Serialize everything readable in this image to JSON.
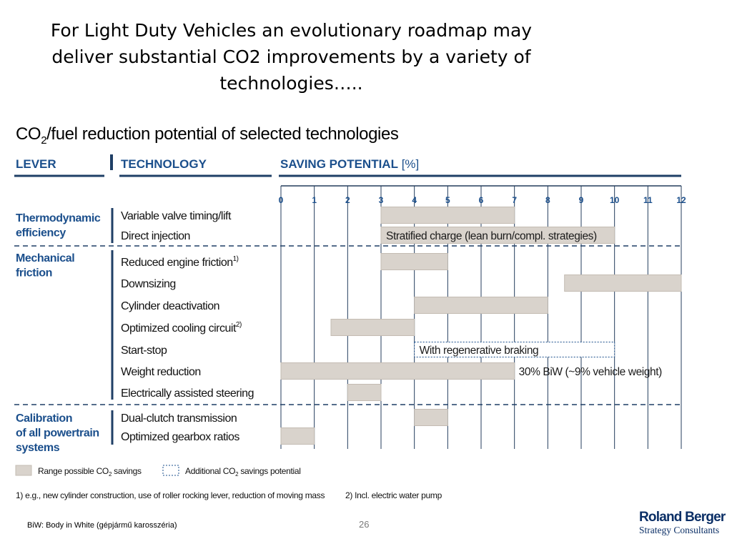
{
  "slide": {
    "title": "For Light Duty Vehicles an evolutionary roadmap may deliver substantial CO2 improvements by a variety of technologies…..",
    "page_number": "26",
    "footnote_biw": "BiW: Body in White (gépjármű karosszéria)"
  },
  "logo": {
    "line1": "Roland Berger",
    "line2": "Strategy Consultants"
  },
  "chart_data": {
    "type": "bar",
    "subtype": "floating-range",
    "title_parts": [
      "CO",
      "2",
      "/fuel reduction potential of selected technologies"
    ],
    "columns": {
      "lever": "LEVER",
      "technology": "TECHNOLOGY",
      "saving": "SAVING POTENTIAL",
      "saving_unit": "[%]"
    },
    "x_ticks": [
      "0",
      "1",
      "2",
      "3",
      "4",
      "5",
      "6",
      "7",
      "8",
      "9",
      "10",
      "11",
      "12"
    ],
    "xlim": [
      0,
      12
    ],
    "grid": true,
    "groups": [
      {
        "lever": "Thermodynamic efficiency",
        "lever_lines": [
          "Thermodynamic",
          "efficiency"
        ]
      },
      {
        "lever": "Mechanical friction",
        "lever_lines": [
          "Mechanical",
          "friction"
        ]
      },
      {
        "lever": "Calibration of all powertrain systems",
        "lever_lines": [
          "Calibration",
          "of all powertrain",
          "systems"
        ]
      }
    ],
    "rows": [
      {
        "group": 0,
        "technology": "Variable valve timing/lift",
        "sup": "",
        "range": [
          3,
          7
        ]
      },
      {
        "group": 0,
        "technology": "Direct injection",
        "sup": "",
        "range": [
          3,
          10
        ],
        "label": "Stratified charge (lean burn/compl. strategies)"
      },
      {
        "group": 1,
        "technology": "Reduced engine friction",
        "sup": "1)",
        "range": [
          3,
          5
        ]
      },
      {
        "group": 1,
        "technology": "Downsizing",
        "sup": "",
        "range": [
          8.5,
          12
        ]
      },
      {
        "group": 1,
        "technology": "Cylinder deactivation",
        "sup": "",
        "range": [
          4,
          8
        ]
      },
      {
        "group": 1,
        "technology": "Optimized cooling circuit",
        "sup": "2)",
        "range": [
          1.5,
          4
        ]
      },
      {
        "group": 1,
        "technology": "Start-stop",
        "sup": "",
        "range": null,
        "additional": [
          4,
          10
        ],
        "label": "With regenerative braking"
      },
      {
        "group": 1,
        "technology": "Weight reduction",
        "sup": "",
        "range": [
          0,
          7
        ],
        "label_after": "30% BiW (~9% vehicle weight)"
      },
      {
        "group": 1,
        "technology": "Electrically assisted steering",
        "sup": "",
        "range": [
          2,
          3
        ]
      },
      {
        "group": 2,
        "technology": "Dual-clutch transmission",
        "sup": "",
        "range": [
          4,
          5
        ]
      },
      {
        "group": 2,
        "technology": "Optimized gearbox ratios",
        "sup": "",
        "range": [
          0,
          1
        ]
      }
    ],
    "legend": {
      "range_text": "Range possible",
      "range_co": "CO",
      "range_sub": "2",
      "range_after": " savings",
      "additional_text": "Additional ",
      "additional_co": "CO",
      "additional_sub": "2",
      "additional_after": " savings potential"
    },
    "footnotes": [
      "1)  e.g., new cylinder construction, use of roller rocking lever, reduction of moving mass",
      "2)  Incl. electric water pump"
    ],
    "colors": {
      "bar_fill": "#d9d3cc",
      "bar_stroke": "#c4bcb3",
      "header_text": "#1b4f8c",
      "rule": "#1f3f66",
      "grid": "#243d5c",
      "text": "#111111"
    }
  }
}
